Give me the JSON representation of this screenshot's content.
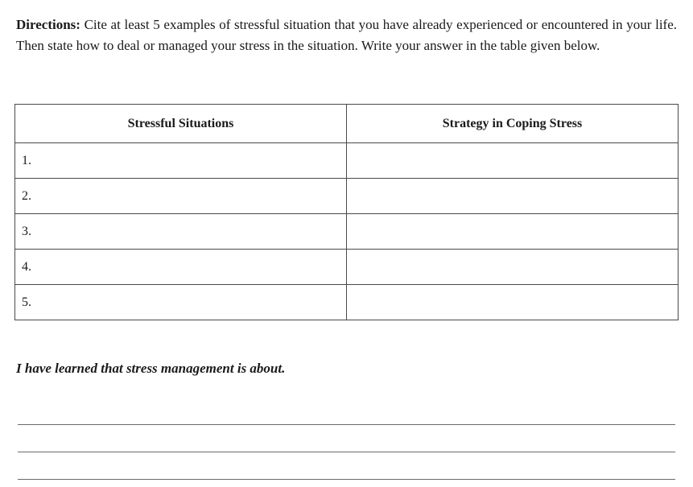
{
  "directions": {
    "label": "Directions:",
    "text": " Cite at least 5 examples of stressful situation that you have already experienced or encountered in your life. Then state how to deal or managed your stress in the situation. Write your answer in the table given below."
  },
  "table": {
    "headers": {
      "col1": "Stressful Situations",
      "col2": "Strategy in Coping Stress"
    },
    "rows": [
      {
        "num": "1.",
        "situation": "",
        "strategy": ""
      },
      {
        "num": "2.",
        "situation": "",
        "strategy": ""
      },
      {
        "num": "3.",
        "situation": "",
        "strategy": ""
      },
      {
        "num": "4.",
        "situation": "",
        "strategy": ""
      },
      {
        "num": "5.",
        "situation": "",
        "strategy": ""
      }
    ]
  },
  "learned": {
    "text": "I have learned that stress management is about."
  },
  "blank_lines_count": 3,
  "styling": {
    "font_family": "Georgia, serif",
    "text_color": "#1a1a1a",
    "border_color": "#4a4a4a",
    "line_color": "#6a6a6a",
    "background_color": "#ffffff",
    "body_fontsize": 17,
    "table_fontsize": 16
  }
}
